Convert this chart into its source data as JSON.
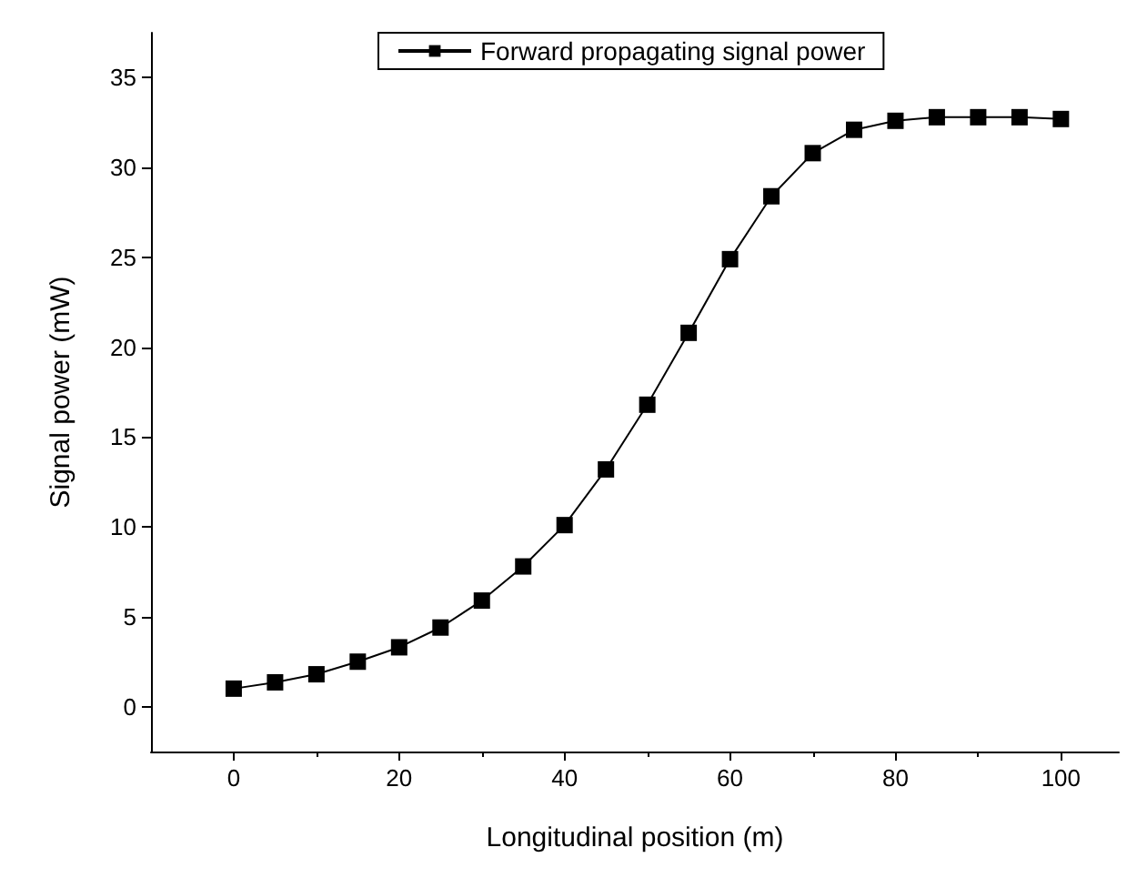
{
  "chart_data": {
    "type": "line",
    "xlabel": "Longitudinal position (m)",
    "ylabel": "Signal power (mW)",
    "x": [
      0,
      5,
      10,
      15,
      20,
      25,
      30,
      35,
      40,
      45,
      50,
      55,
      60,
      65,
      70,
      75,
      80,
      85,
      90,
      95,
      100
    ],
    "series": [
      {
        "name": "Forward propagating signal power",
        "color": "#000000",
        "values": [
          1.0,
          1.35,
          1.8,
          2.5,
          3.3,
          4.4,
          5.9,
          7.8,
          10.1,
          13.2,
          16.8,
          20.8,
          24.9,
          28.4,
          30.8,
          32.1,
          32.6,
          32.8,
          32.8,
          32.8,
          32.7
        ]
      }
    ],
    "xlim": [
      -10,
      107
    ],
    "xticks": [
      0,
      20,
      40,
      60,
      80,
      100
    ],
    "ylim": [
      -2.5,
      37.5
    ],
    "yticks": [
      0,
      5,
      10,
      15,
      20,
      25,
      30,
      35
    ],
    "legend": "top",
    "marker": "square",
    "line_style": "solid",
    "grid": false
  }
}
